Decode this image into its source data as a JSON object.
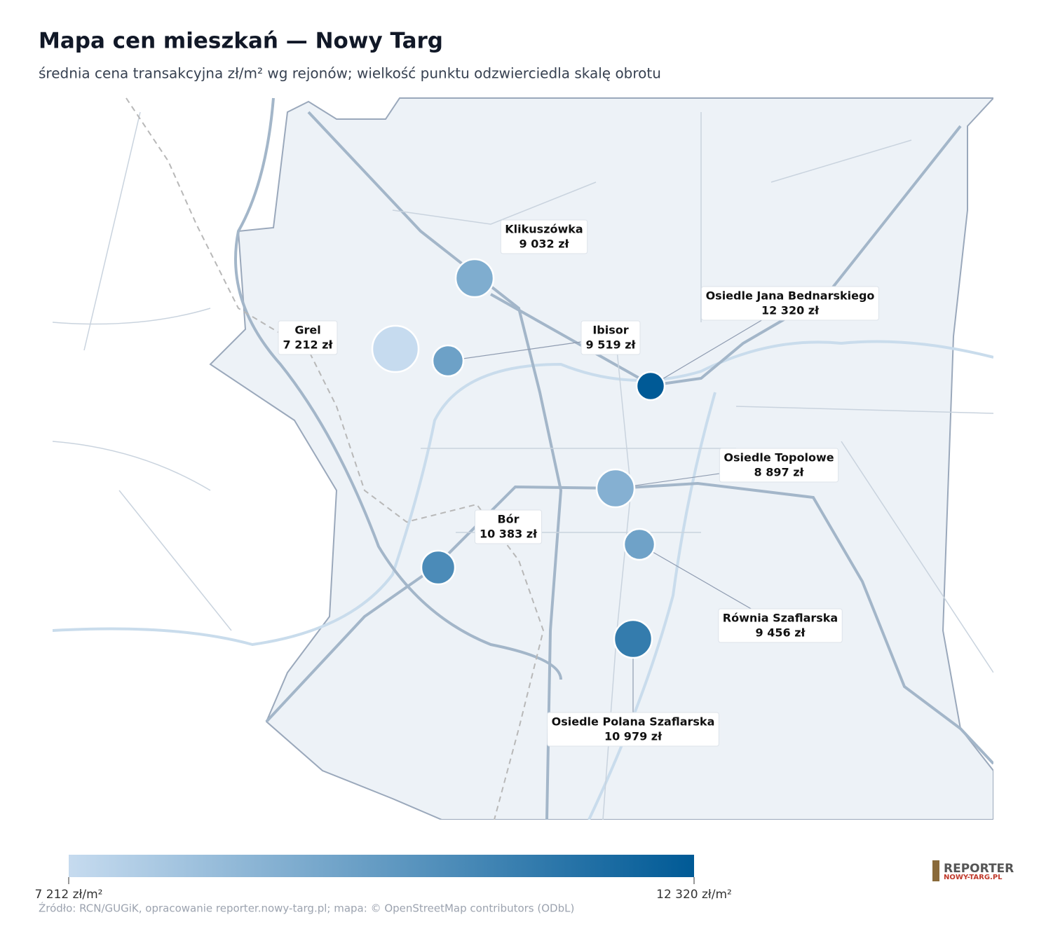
{
  "title": "Mapa cen mieszkań — Nowy Targ",
  "subtitle": "średnia cena transakcyjna zł/m² wg rejonów; wielkość punktu odzwierciedla skalę obrotu",
  "colors": {
    "low": "#c6dbef",
    "high": "#005a96"
  },
  "regions": [
    {
      "name": "Klikuszówka",
      "value": 9032,
      "value_label": "9 032 zł"
    },
    {
      "name": "Grel",
      "value": 7212,
      "value_label": "7 212 zł"
    },
    {
      "name": "Ibisor",
      "value": 9519,
      "value_label": "9 519 zł"
    },
    {
      "name": "Osiedle Jana Bednarskiego",
      "value": 12320,
      "value_label": "12 320 zł"
    },
    {
      "name": "Osiedle Topolowe",
      "value": 8897,
      "value_label": "8 897 zł"
    },
    {
      "name": "Bór",
      "value": 10383,
      "value_label": "10 383 zł"
    },
    {
      "name": "Równia Szaflarska",
      "value": 9456,
      "value_label": "9 456 zł"
    },
    {
      "name": "Osiedle Polana Szaflarska",
      "value": 10979,
      "value_label": "10 979 zł"
    }
  ],
  "colorbar": {
    "min": {
      "value": 7212,
      "label": "7 212 zł/m²"
    },
    "max": {
      "value": 12320,
      "label": "12 320 zł/m²"
    }
  },
  "source": "Źródło: RCN/GUGiK, opracowanie reporter.nowy-targ.pl; mapa: © OpenStreetMap contributors (ODbL)",
  "logo": {
    "top": "REPORTER",
    "bottom": "NOWY-TARG.PL"
  }
}
